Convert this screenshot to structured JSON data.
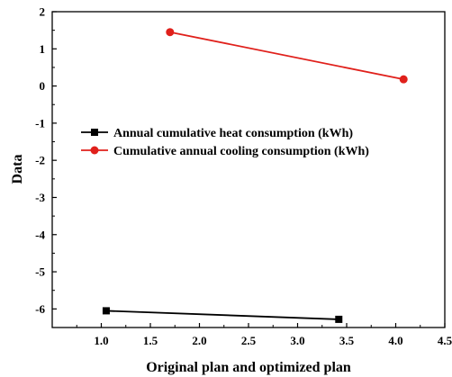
{
  "chart_data": {
    "type": "line",
    "title": "",
    "xlabel": "Original plan and optimized plan",
    "ylabel": "Data",
    "xlim": [
      0.5,
      4.5
    ],
    "ylim": [
      -6.5,
      2
    ],
    "x_ticks": [
      1.0,
      1.5,
      2.0,
      2.5,
      3.0,
      3.5,
      4.0,
      4.5
    ],
    "x_tick_labels": [
      "1.0",
      "1.5",
      "2.0",
      "2.5",
      "3.0",
      "3.5",
      "4.0",
      "4.5"
    ],
    "y_ticks": [
      -6,
      -5,
      -4,
      -3,
      -2,
      -1,
      0,
      1,
      2
    ],
    "y_tick_labels": [
      "-6",
      "-5",
      "-4",
      "-3",
      "-2",
      "-1",
      "0",
      "1",
      "2"
    ],
    "grid": false,
    "legend_position": "middle-left",
    "series": [
      {
        "name": "Annual cumulative heat consumption (kWh)",
        "color": "#000000",
        "marker": "square",
        "x": [
          1.05,
          3.42
        ],
        "y": [
          -6.05,
          -6.28
        ]
      },
      {
        "name": "Cumulative annual cooling consumption (kWh)",
        "color": "#e0201b",
        "marker": "circle",
        "x": [
          1.7,
          4.08
        ],
        "y": [
          1.45,
          0.18
        ]
      }
    ]
  }
}
